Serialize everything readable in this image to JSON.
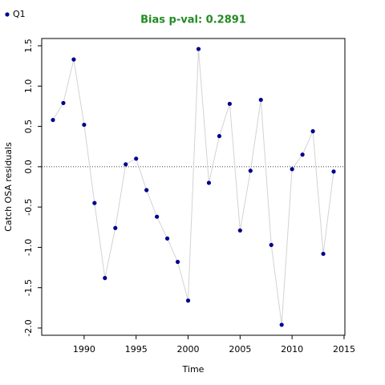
{
  "chart_data": {
    "type": "line",
    "title": "Bias p-val: 0.2891",
    "title_color": "#228b22",
    "x_label": "Time",
    "y_label": "Catch OSA residuals",
    "x": [
      1987,
      1988,
      1989,
      1990,
      1991,
      1992,
      1993,
      1994,
      1995,
      1996,
      1997,
      1998,
      1999,
      2000,
      2001,
      2002,
      2003,
      2004,
      2005,
      2006,
      2007,
      2008,
      2009,
      2010,
      2011,
      2012,
      2013,
      2014
    ],
    "series": [
      {
        "name": "Q1",
        "color": "#00008b",
        "line_color": "#d3d3d3",
        "values": [
          0.58,
          0.79,
          1.33,
          0.52,
          -0.45,
          -1.38,
          -0.76,
          0.03,
          0.1,
          -0.29,
          -0.62,
          -0.89,
          -1.18,
          -1.66,
          1.46,
          -0.2,
          0.38,
          0.78,
          -0.79,
          -0.05,
          0.83,
          -0.97,
          -1.96,
          -0.03,
          0.15,
          0.44,
          -1.08,
          -0.06
        ]
      }
    ],
    "xlim": [
      1985.92,
      2015.08
    ],
    "xticks": [
      1990,
      1995,
      2000,
      2005,
      2010,
      2015
    ],
    "ylim": [
      -2.09,
      1.59
    ],
    "yticks": [
      {
        "value": -2,
        "label": "-2.0"
      },
      -1.5,
      {
        "value": -1,
        "label": "-1.0"
      },
      -0.5,
      {
        "value": 0,
        "label": "0.0"
      },
      0.5,
      {
        "value": 1,
        "label": "1.0"
      },
      1.5
    ],
    "reference_line": 0,
    "legend_position": "top-left"
  }
}
